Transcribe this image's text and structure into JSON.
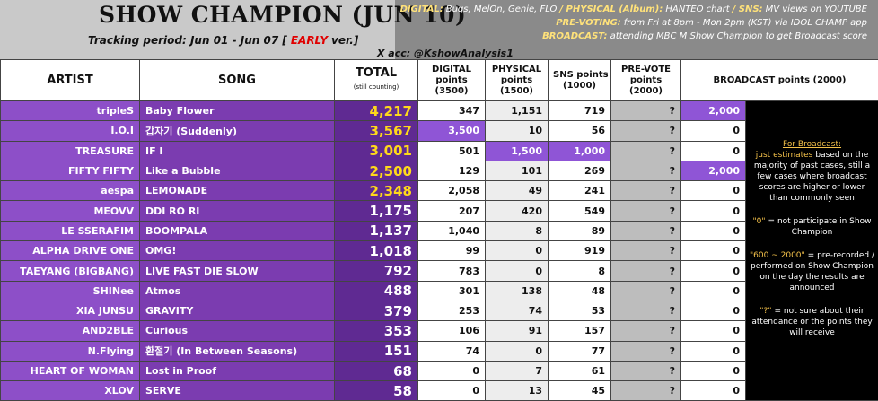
{
  "header": {
    "title": "SHOW CHAMPION (JUN 10)",
    "tracking": {
      "prefix": "Tracking period: Jun 01 - Jun 07 [",
      "early": "EARLY",
      "suffix": "ver.]"
    },
    "notes": [
      [
        {
          "label": "DIGITAL:",
          "text": "Bugs, MelOn, Genie, FLO"
        },
        {
          "label": "/ PHYSICAL (Album):",
          "text": "HANTEO chart"
        },
        {
          "label": "/ SNS:",
          "text": "MV views on YOUTUBE"
        }
      ],
      [
        {
          "label": "PRE-VOTING:",
          "text": "from Fri at 8pm - Mon 2pm (KST) via IDOL CHAMP app"
        }
      ],
      [
        {
          "label": "BROADCAST:",
          "text": "attending MBC M Show Champion to get Broadcast score"
        }
      ]
    ],
    "account": "X acc: @KshowAnalysis1"
  },
  "table": {
    "columns": [
      {
        "lines": [
          "ARTIST"
        ]
      },
      {
        "lines": [
          "SONG"
        ]
      },
      {
        "lines": [
          "TOTAL"
        ],
        "note": "(still counting)"
      },
      {
        "lines": [
          "DIGITAL",
          "points",
          "(3500)"
        ]
      },
      {
        "lines": [
          "PHYSICAL",
          "points",
          "(1500)"
        ]
      },
      {
        "lines": [
          "SNS points",
          "(1000)"
        ]
      },
      {
        "lines": [
          "PRE-VOTE",
          "points",
          "(2000)"
        ]
      },
      {
        "lines": [
          "BROADCAST points (2000)"
        ]
      }
    ],
    "rows": [
      [
        "tripleS",
        "Baby Flower",
        "4,217",
        "347",
        "1,151",
        "719",
        "?",
        "2,000"
      ],
      [
        "I.O.I",
        "갑자기 (Suddenly)",
        "3,567",
        "3,500",
        "10",
        "56",
        "?",
        "0"
      ],
      [
        "TREASURE",
        "IF I",
        "3,001",
        "501",
        "1,500",
        "1,000",
        "?",
        "0"
      ],
      [
        "FIFTY FIFTY",
        "Like a Bubble",
        "2,500",
        "129",
        "101",
        "269",
        "?",
        "2,000"
      ],
      [
        "aespa",
        "LEMONADE",
        "2,348",
        "2,058",
        "49",
        "241",
        "?",
        "0"
      ],
      [
        "MEOVV",
        "DDI RO RI",
        "1,175",
        "207",
        "420",
        "549",
        "?",
        "0"
      ],
      [
        "LE SSERAFIM",
        "BOOMPALA",
        "1,137",
        "1,040",
        "8",
        "89",
        "?",
        "0"
      ],
      [
        "ALPHA DRIVE ONE",
        "OMG!",
        "1,018",
        "99",
        "0",
        "919",
        "?",
        "0"
      ],
      [
        "TAEYANG (BIGBANG)",
        "LIVE FAST DIE SLOW",
        "792",
        "783",
        "0",
        "8",
        "?",
        "0"
      ],
      [
        "SHINee",
        "Atmos",
        "488",
        "301",
        "138",
        "48",
        "?",
        "0"
      ],
      [
        "XIA JUNSU",
        "GRAVITY",
        "379",
        "253",
        "74",
        "53",
        "?",
        "0"
      ],
      [
        "AND2BLE",
        "Curious",
        "353",
        "106",
        "91",
        "157",
        "?",
        "0"
      ],
      [
        "N.Flying",
        "환절기 (In Between Seasons)",
        "151",
        "74",
        "0",
        "77",
        "?",
        "0"
      ],
      [
        "HEART OF WOMAN",
        "Lost in Proof",
        "68",
        "0",
        "7",
        "61",
        "?",
        "0"
      ],
      [
        "XLOV",
        "SERVE",
        "58",
        "0",
        "13",
        "45",
        "?",
        "0"
      ]
    ]
  },
  "legend": {
    "heading": "For Broadcast:",
    "paragraphs": [
      {
        "key": "just estimates",
        "text": "based on the majority of past cases, still a few cases where broadcast scores are higher or lower than commonly seen"
      },
      {
        "key": "\"0\"",
        "text": "= not participate in Show Champion"
      },
      {
        "key": "\"600 ~ 2000\"",
        "text": "= pre-recorded / performed on Show Champion on the day the results are announced"
      },
      {
        "key": "\"?\"",
        "text": "= not sure about their attendance or the points they will receive"
      }
    ]
  }
}
